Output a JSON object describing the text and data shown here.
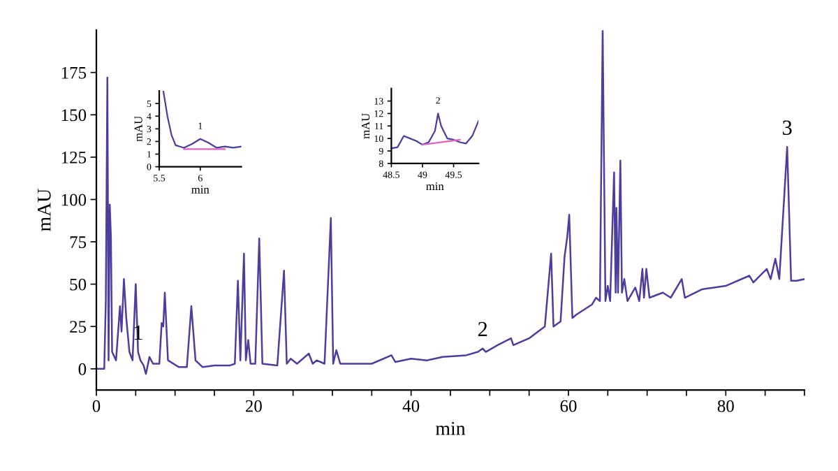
{
  "chart_data": [
    {
      "type": "line",
      "xlabel": "min",
      "ylabel": "mAU",
      "xlim": [
        0,
        90
      ],
      "ylim": [
        -12.5,
        200
      ],
      "xticks": [
        0,
        {
          "value": 5,
          "label": null
        },
        {
          "value": 10,
          "label": null
        },
        {
          "value": 15,
          "label": null
        },
        20,
        {
          "value": 25,
          "label": null
        },
        {
          "value": 30,
          "label": null
        },
        {
          "value": 35,
          "label": null
        },
        40,
        {
          "value": 45,
          "label": null
        },
        {
          "value": 50,
          "label": null
        },
        {
          "value": 55,
          "label": null
        },
        60,
        {
          "value": 65,
          "label": null
        },
        {
          "value": 70,
          "label": null
        },
        {
          "value": 75,
          "label": null
        },
        80,
        {
          "value": 85,
          "label": null
        },
        {
          "value": 90,
          "label": null
        }
      ],
      "yticks": [
        0,
        25,
        50,
        75,
        100,
        125,
        150,
        175
      ],
      "grid": false,
      "legend": false,
      "annotations": [
        {
          "text": "1",
          "x": 5.3,
          "y": 10
        },
        {
          "text": "2",
          "x": 49.1,
          "y": 12
        },
        {
          "text": "3",
          "x": 87.8,
          "y": 131
        }
      ],
      "series": [
        {
          "color": "#4b3f9e",
          "x": [
            0,
            1.0,
            1.2,
            1.4,
            1.55,
            1.7,
            1.85,
            2.0,
            2.5,
            3.0,
            3.2,
            3.5,
            3.8,
            4.2,
            4.6,
            5.0,
            5.3,
            5.6,
            6.0,
            6.3,
            6.75,
            7.2,
            8.0,
            8.3,
            8.5,
            8.7,
            9.1,
            10.5,
            11.5,
            12.07,
            12.6,
            13.5,
            15,
            17,
            17.6,
            17.99,
            18.3,
            18.76,
            19.0,
            19.3,
            19.6,
            20.2,
            20.7,
            21.1,
            23,
            23.85,
            24.2,
            24.7,
            25.5,
            27.0,
            27.5,
            28,
            29,
            29.8,
            30.1,
            30.5,
            31,
            35,
            37.5,
            38,
            40,
            42,
            44,
            47,
            48.5,
            49.1,
            49.5,
            51,
            52.7,
            53,
            55,
            57,
            57.8,
            58.1,
            59,
            59.5,
            59.85,
            60.1,
            60.5,
            61,
            63,
            63.5,
            64.0,
            64.35,
            64.7,
            65.0,
            65.3,
            65.8,
            66.0,
            66.1,
            66.3,
            66.6,
            66.8,
            67.1,
            67.5,
            68.5,
            69.0,
            69.4,
            69.6,
            69.9,
            70.3,
            72,
            73,
            74.4,
            74.8,
            77,
            80,
            83.0,
            83.5,
            85.2,
            85.7,
            86.3,
            86.8,
            87.8,
            88.3,
            89,
            90
          ],
          "values": [
            0,
            0,
            40,
            172,
            5,
            97,
            78,
            10,
            5,
            37,
            22,
            53,
            30,
            10,
            5,
            50,
            10,
            5,
            2,
            -3,
            7,
            3,
            3,
            27,
            25,
            45,
            5,
            1,
            1,
            37,
            5,
            1,
            2,
            2,
            3,
            52,
            5,
            68,
            5,
            17,
            3,
            3,
            77,
            3,
            2,
            58,
            3,
            6,
            3,
            9,
            3,
            5,
            3,
            89,
            3,
            11,
            3,
            3,
            8,
            4,
            6,
            5,
            7,
            8,
            10,
            12,
            10,
            14,
            18,
            14,
            18,
            25,
            68,
            25,
            28,
            66,
            78,
            91,
            30,
            32,
            38,
            42,
            40,
            200,
            40,
            49,
            40,
            116,
            45,
            95,
            45,
            123,
            45,
            53,
            40,
            48,
            40,
            59,
            42,
            59,
            42,
            45,
            42,
            53,
            42,
            47,
            49,
            55,
            51,
            59,
            53,
            65,
            53,
            131,
            52,
            52,
            53
          ]
        }
      ]
    },
    {
      "type": "line",
      "xlabel": "min",
      "ylabel": "mAU",
      "xlim": [
        5.5,
        6.5
      ],
      "ylim": [
        0,
        6
      ],
      "xticks": [
        5.5,
        6
      ],
      "yticks": [
        0,
        1,
        2,
        3,
        4,
        5
      ],
      "grid": false,
      "legend": false,
      "annotations": [
        {
          "text": "1",
          "x": 6.0,
          "y": 2.2
        }
      ],
      "series": [
        {
          "color": "#4b3f9e",
          "x": [
            5.55,
            5.6,
            5.65,
            5.7,
            5.8,
            5.9,
            6.0,
            6.1,
            6.2,
            6.3,
            6.4,
            6.5
          ],
          "values": [
            6,
            4,
            2.5,
            1.7,
            1.5,
            1.8,
            2.2,
            1.9,
            1.5,
            1.6,
            1.5,
            1.6
          ]
        },
        {
          "color": "#e060c0",
          "x": [
            5.8,
            6.3
          ],
          "values": [
            1.4,
            1.4
          ]
        }
      ]
    },
    {
      "type": "line",
      "xlabel": "min",
      "ylabel": "mAU",
      "xlim": [
        48.5,
        49.9
      ],
      "ylim": [
        8,
        14
      ],
      "xticks": [
        48.5,
        49,
        49.5
      ],
      "yticks": [
        8,
        9,
        10,
        11,
        12,
        13
      ],
      "grid": false,
      "legend": false,
      "annotations": [
        {
          "text": "2",
          "x": 49.25,
          "y": 12.0
        }
      ],
      "series": [
        {
          "color": "#4b3f9e",
          "x": [
            48.5,
            48.6,
            48.7,
            48.8,
            48.9,
            49.0,
            49.1,
            49.2,
            49.25,
            49.3,
            49.4,
            49.5,
            49.6,
            49.7,
            49.8,
            49.9
          ],
          "values": [
            9.2,
            9.3,
            10.2,
            10.0,
            9.8,
            9.5,
            9.7,
            10.6,
            12.0,
            11.0,
            10.0,
            9.9,
            9.7,
            9.6,
            10.2,
            11.4
          ]
        },
        {
          "color": "#e060c0",
          "x": [
            49.0,
            49.6
          ],
          "values": [
            9.5,
            9.9
          ]
        }
      ]
    }
  ]
}
